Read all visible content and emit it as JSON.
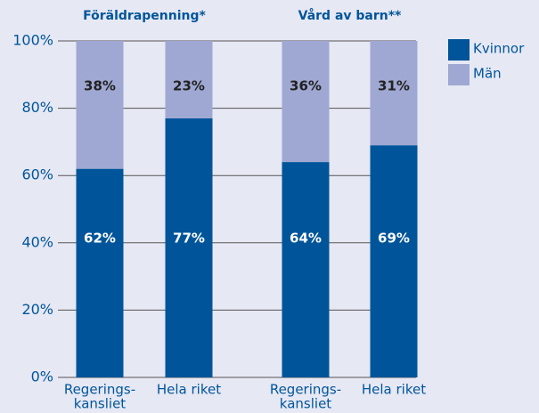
{
  "chart_data": {
    "type": "stacked_bar",
    "groups": [
      "Föräldrapenning*",
      "Vård av barn**"
    ],
    "categories": [
      [
        "Regerings-",
        "kansliet"
      ],
      [
        "Hela riket"
      ],
      [
        "Regerings-",
        "kansliet"
      ],
      [
        "Hela riket"
      ]
    ],
    "series": [
      {
        "name": "Kvinnor",
        "color": "#00559a",
        "values": [
          62,
          77,
          64,
          69
        ],
        "value_labels": [
          "62%",
          "77%",
          "64%",
          "69%"
        ]
      },
      {
        "name": "Män",
        "color": "#9fa8d2",
        "values": [
          38,
          23,
          36,
          31
        ],
        "value_labels": [
          "38%",
          "23%",
          "36%",
          "31%"
        ]
      }
    ],
    "ylim": [
      0,
      100
    ],
    "yticks": [
      {
        "value": 0,
        "label": "0%"
      },
      {
        "value": 20,
        "label": "20%"
      },
      {
        "value": 40,
        "label": "40%"
      },
      {
        "value": 60,
        "label": "60%"
      },
      {
        "value": 80,
        "label": "80%"
      },
      {
        "value": 100,
        "label": "100%"
      }
    ],
    "grid": true,
    "legend": "top-right"
  }
}
